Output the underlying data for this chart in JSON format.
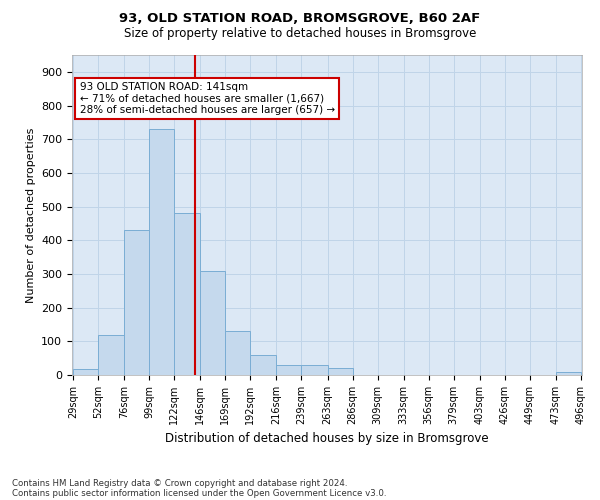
{
  "title1": "93, OLD STATION ROAD, BROMSGROVE, B60 2AF",
  "title2": "Size of property relative to detached houses in Bromsgrove",
  "xlabel": "Distribution of detached houses by size in Bromsgrove",
  "ylabel": "Number of detached properties",
  "footnote1": "Contains HM Land Registry data © Crown copyright and database right 2024.",
  "footnote2": "Contains public sector information licensed under the Open Government Licence v3.0.",
  "bar_edges": [
    29,
    52,
    76,
    99,
    122,
    146,
    169,
    192,
    216,
    239,
    263,
    286,
    309,
    333,
    356,
    379,
    403,
    426,
    449,
    473,
    496
  ],
  "bar_heights": [
    18,
    120,
    430,
    730,
    480,
    310,
    130,
    60,
    30,
    30,
    20,
    0,
    0,
    0,
    0,
    0,
    0,
    0,
    0,
    10
  ],
  "bar_color": "#c5d9ed",
  "bar_edge_color": "#7aadd4",
  "grid_color": "#c0d4e8",
  "background_color": "#dce8f5",
  "property_size": 141,
  "property_line_color": "#cc0000",
  "annotation_line1": "93 OLD STATION ROAD: 141sqm",
  "annotation_line2": "← 71% of detached houses are smaller (1,667)",
  "annotation_line3": "28% of semi-detached houses are larger (657) →",
  "annotation_box_color": "#ffffff",
  "annotation_box_edge": "#cc0000",
  "ylim": [
    0,
    950
  ],
  "yticks": [
    0,
    100,
    200,
    300,
    400,
    500,
    600,
    700,
    800,
    900
  ]
}
